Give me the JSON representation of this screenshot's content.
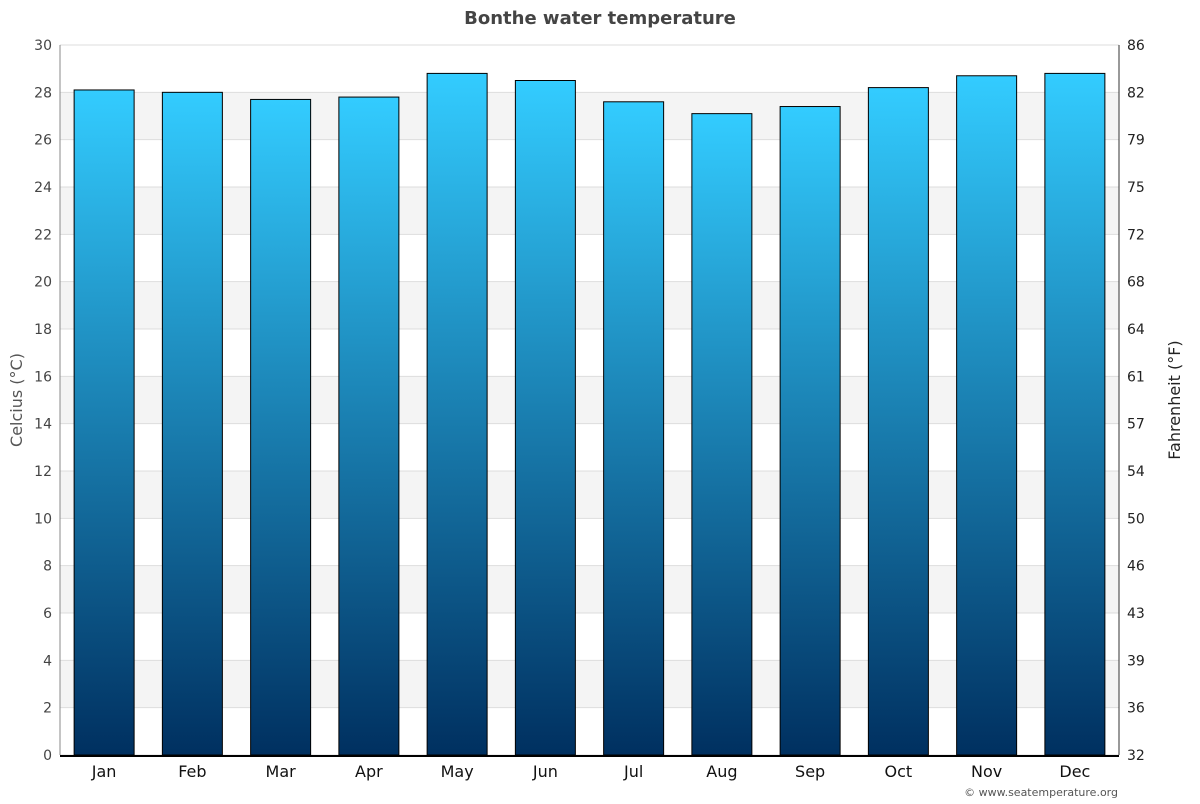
{
  "chart_data": {
    "type": "bar",
    "title": "Bonthe water temperature",
    "ylabel": "Celcius (°C)",
    "y2label": "Fahrenheit (°F)",
    "categories": [
      "Jan",
      "Feb",
      "Mar",
      "Apr",
      "May",
      "Jun",
      "Jul",
      "Aug",
      "Sep",
      "Oct",
      "Nov",
      "Dec"
    ],
    "values": [
      28.1,
      28.0,
      27.7,
      27.8,
      28.8,
      28.5,
      27.6,
      27.1,
      27.4,
      28.2,
      28.7,
      28.8
    ],
    "ylim": [
      0,
      30
    ],
    "yticks": [
      0,
      2,
      4,
      6,
      8,
      10,
      12,
      14,
      16,
      18,
      20,
      22,
      24,
      26,
      28,
      30
    ],
    "y2ticks": [
      "32",
      "36",
      "39",
      "43",
      "46",
      "50",
      "54",
      "57",
      "61",
      "64",
      "68",
      "72",
      "75",
      "79",
      "82",
      "86"
    ],
    "grid": true,
    "colors": {
      "bar_top": "#33ccff",
      "bar_bottom": "#003060",
      "band": "#f4f4f4"
    }
  },
  "credit": "© www.seatemperature.org"
}
